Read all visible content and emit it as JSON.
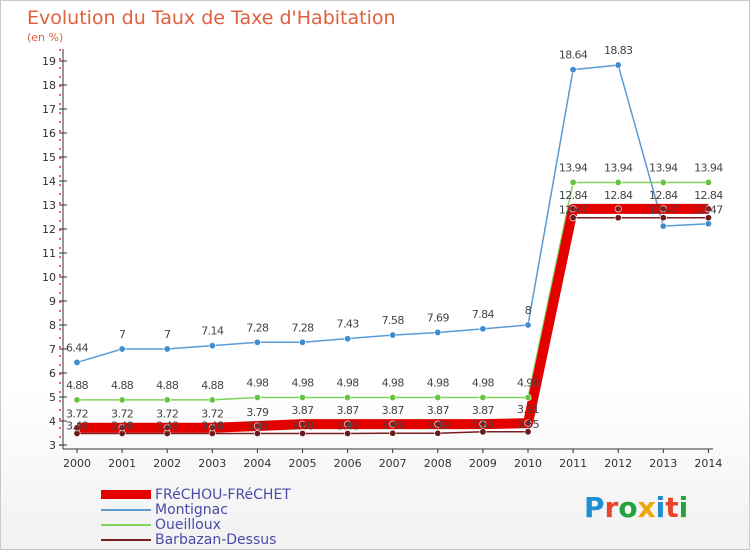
{
  "page": {
    "title": "Evolution du Taux de Taxe d'Habitation",
    "unit_label": "(en %)"
  },
  "logo": {
    "letters": [
      "P",
      "r",
      "o",
      "x",
      "i",
      "t",
      "i"
    ],
    "colors": [
      "#1f8fd1",
      "#e8462b",
      "#23a33b",
      "#f0a500",
      "#1f8fd1",
      "#e8462b",
      "#23a33b"
    ]
  },
  "chart_data": {
    "type": "line",
    "title": "Evolution du Taux de Taxe d'Habitation",
    "ylabel": "(en %)",
    "xlabel": "",
    "x": [
      "2000",
      "2001",
      "2002",
      "2003",
      "2004",
      "2005",
      "2006",
      "2007",
      "2008",
      "2009",
      "2010",
      "2011",
      "2012",
      "2013",
      "2014"
    ],
    "yticks": [
      "3",
      "4",
      "5",
      "6",
      "7",
      "8",
      "9",
      "10",
      "11",
      "12",
      "13",
      "14",
      "15",
      "16",
      "17",
      "18",
      "19"
    ],
    "ylim": [
      3,
      19
    ],
    "grid": false,
    "legend_position": "bottom-left",
    "series": [
      {
        "name": "FRéCHOU-FRéCHET",
        "color": "#e50000",
        "values": [
          3.72,
          3.72,
          3.72,
          3.72,
          3.79,
          3.87,
          3.87,
          3.87,
          3.87,
          3.87,
          3.91,
          12.84,
          12.84,
          12.84,
          12.84
        ],
        "labels": [
          "3.72",
          "3.72",
          "3.72",
          "3.72",
          "3.79",
          "3.87",
          "3.87",
          "3.87",
          "3.87",
          "3.87",
          "3.91",
          "12.84",
          "12.84",
          "12.84",
          "12.84"
        ]
      },
      {
        "name": "Montignac",
        "color": "#5b9bd5",
        "values": [
          6.44,
          7,
          7,
          7.14,
          7.28,
          7.28,
          7.43,
          7.58,
          7.69,
          7.84,
          8,
          18.64,
          18.83,
          12.12,
          12.22
        ],
        "labels": [
          "6.44",
          "7",
          "7",
          "7.14",
          "7.28",
          "7.28",
          "7.43",
          "7.58",
          "7.69",
          "7.84",
          "8",
          "18.64",
          "18.83",
          "",
          ""
        ]
      },
      {
        "name": "Oueilloux",
        "color": "#7fd35a",
        "values": [
          4.88,
          4.88,
          4.88,
          4.88,
          4.98,
          4.98,
          4.98,
          4.98,
          4.98,
          4.98,
          4.98,
          13.94,
          13.94,
          13.94,
          13.94
        ],
        "labels": [
          "4.88",
          "4.88",
          "4.88",
          "4.88",
          "4.98",
          "4.98",
          "4.98",
          "4.98",
          "4.98",
          "4.98",
          "4.98",
          "13.94",
          "13.94",
          "13.94",
          "13.94"
        ]
      },
      {
        "name": "Barbazan-Dessus",
        "color": "#7a1f1f",
        "values": [
          3.48,
          3.48,
          3.48,
          3.48,
          3.48,
          3.48,
          3.48,
          3.49,
          3.49,
          3.55,
          3.55,
          12.47,
          12.47,
          12.47,
          12.47
        ],
        "labels": [
          "3.48",
          "3.48",
          "3.48",
          "3.48",
          "3.48",
          "3.48",
          "3.48",
          "3.49",
          "3.49",
          "3.55",
          "3.55",
          "12.47",
          "",
          "12.47",
          "12.47"
        ]
      }
    ]
  }
}
